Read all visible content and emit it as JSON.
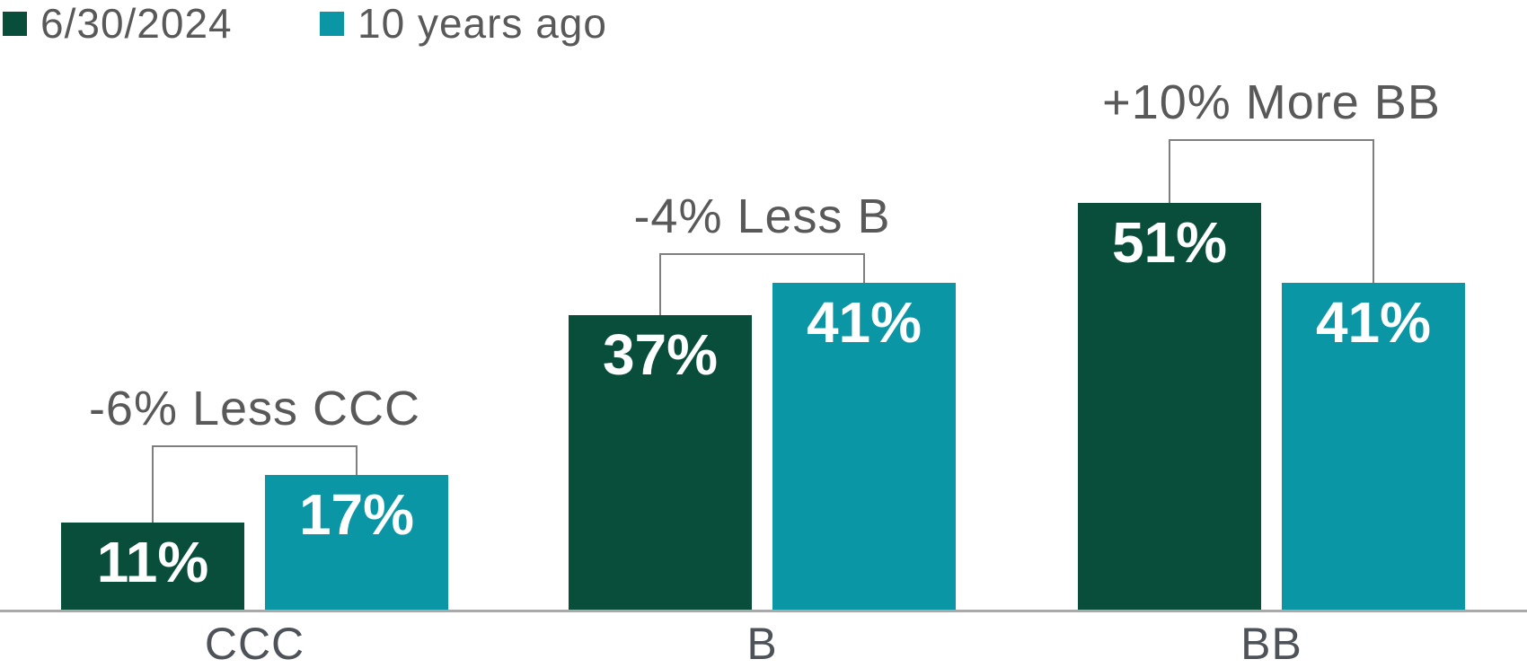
{
  "colors": {
    "series1": "#094E3B",
    "series2": "#0B96A6",
    "text-gray": "#595959",
    "category-gray": "#4E5359",
    "axis-line": "#A9A9A9",
    "bracket": "#7F7F7F",
    "value-text": "#FFFFFF"
  },
  "legend": {
    "items": [
      {
        "label": "6/30/2024",
        "color": "#094E3B",
        "swatch_icon": "square-swatch-icon"
      },
      {
        "label": "10 years ago",
        "color": "#0B96A6",
        "swatch_icon": "square-swatch-icon"
      }
    ]
  },
  "chart_data": {
    "type": "bar",
    "categories": [
      "CCC",
      "B",
      "BB"
    ],
    "series": [
      {
        "name": "6/30/2024",
        "color": "#094E3B",
        "values": [
          11,
          37,
          51
        ]
      },
      {
        "name": "10 years ago",
        "color": "#0B96A6",
        "values": [
          17,
          41,
          41
        ]
      }
    ],
    "value_suffix": "%",
    "bar_value_labels": [
      "11%",
      "17%",
      "37%",
      "41%",
      "51%",
      "41%"
    ],
    "annotations": [
      {
        "category": "CCC",
        "text": "-6% Less CCC"
      },
      {
        "category": "B",
        "text": "-4% Less B"
      },
      {
        "category": "BB",
        "text": "+10% More BB"
      }
    ],
    "xlabel": "",
    "ylabel": "",
    "ylim": [
      0,
      56
    ],
    "grid": false,
    "legend_position": "top-left",
    "value_labels_inside_bars": true,
    "comparison_brackets": true
  }
}
